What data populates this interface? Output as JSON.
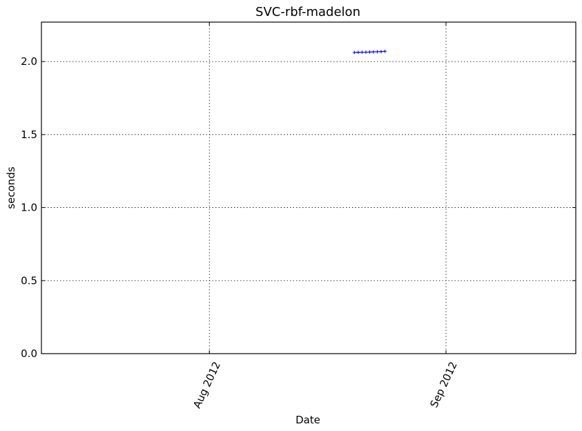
{
  "chart_data": {
    "type": "line",
    "title": "SVC-rbf-madelon",
    "xlabel": "Date",
    "ylabel": "seconds",
    "x_axis": {
      "type": "date",
      "range": [
        "2012-07-10",
        "2012-09-18"
      ],
      "ticks": [
        {
          "date": "2012-08-01",
          "label": "Aug 2012"
        },
        {
          "date": "2012-09-01",
          "label": "Sep 2012"
        }
      ]
    },
    "y_axis": {
      "range": [
        0,
        2.27
      ],
      "ticks": [
        {
          "value": 0.0,
          "label": "0.0"
        },
        {
          "value": 0.5,
          "label": "0.5"
        },
        {
          "value": 1.0,
          "label": "1.0"
        },
        {
          "value": 1.5,
          "label": "1.5"
        },
        {
          "value": 2.0,
          "label": "2.0"
        }
      ]
    },
    "grid": true,
    "series": [
      {
        "color": "#0000ff",
        "marker": "+",
        "points": [
          {
            "x": "2012-08-20",
            "y": 2.062
          },
          {
            "x": "2012-08-20T12:00",
            "y": 2.063
          },
          {
            "x": "2012-08-21",
            "y": 2.064
          },
          {
            "x": "2012-08-21T12:00",
            "y": 2.064
          },
          {
            "x": "2012-08-22",
            "y": 2.065
          },
          {
            "x": "2012-08-22T12:00",
            "y": 2.066
          },
          {
            "x": "2012-08-23",
            "y": 2.067
          },
          {
            "x": "2012-08-23T12:00",
            "y": 2.068
          },
          {
            "x": "2012-08-24",
            "y": 2.07
          }
        ]
      }
    ]
  }
}
